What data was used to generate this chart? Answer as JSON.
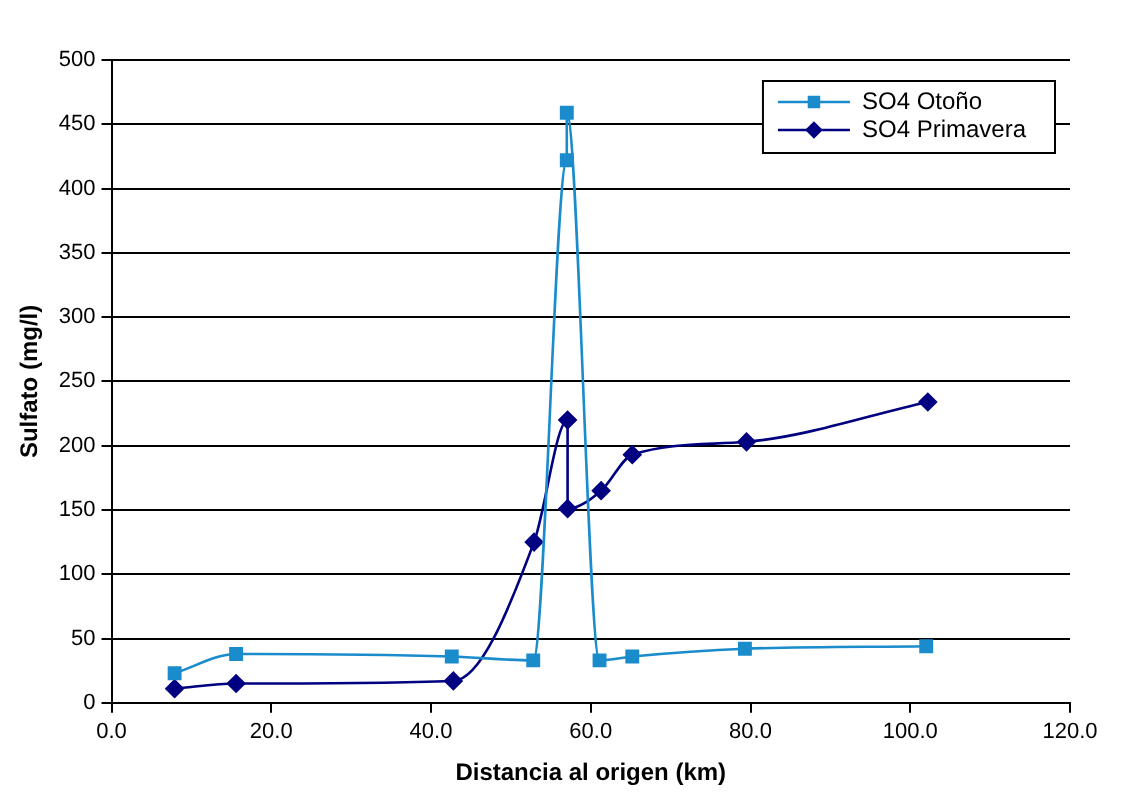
{
  "chart_data": {
    "type": "line",
    "xlabel": "Distancia al origen (km)",
    "ylabel": "Sulfato (mg/l)",
    "xlim": [
      0,
      120
    ],
    "xticks": [
      {
        "value": 0,
        "label": "0.0"
      },
      {
        "value": 20,
        "label": "20.0"
      },
      {
        "value": 40,
        "label": "40.0"
      },
      {
        "value": 60,
        "label": "60.0"
      },
      {
        "value": 80,
        "label": "80.0"
      },
      {
        "value": 100,
        "label": "100.0"
      },
      {
        "value": 120,
        "label": "120.0"
      }
    ],
    "ylim": [
      0,
      500
    ],
    "yticks": [
      0,
      50,
      100,
      150,
      200,
      250,
      300,
      350,
      400,
      450,
      500
    ],
    "grid": "y",
    "legend": "top right",
    "series": [
      {
        "name": "SO4 Otoño",
        "color": "#1a8ccc",
        "marker": "square",
        "x": [
          7.9,
          15.6,
          42.6,
          52.8,
          57.0,
          57.0,
          61.1,
          65.2,
          79.3,
          102
        ],
        "values": [
          23,
          38,
          36,
          33,
          422,
          459,
          33,
          36,
          42,
          44
        ]
      },
      {
        "name": "SO4 Primavera",
        "color": "#000080",
        "marker": "diamond",
        "x": [
          7.9,
          15.6,
          42.8,
          52.9,
          57.1,
          57.1,
          61.3,
          65.2,
          79.5,
          102.2
        ],
        "values": [
          11,
          15,
          17,
          125,
          220,
          151,
          165,
          193,
          203,
          234
        ]
      }
    ]
  }
}
